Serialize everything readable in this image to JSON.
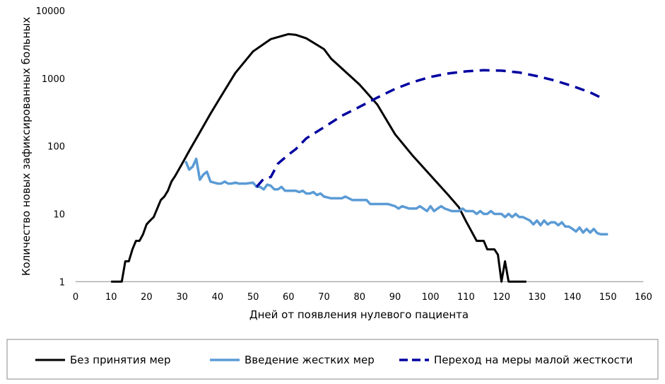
{
  "chart_data": {
    "type": "line",
    "title": "",
    "xlabel": "Дней от появления нулевого пациента",
    "ylabel": "Количество новых зафиксированных больных",
    "xlim": [
      0,
      160
    ],
    "ylim": [
      1,
      10000
    ],
    "yscale": "log",
    "xticks": [
      0,
      10,
      20,
      30,
      40,
      50,
      60,
      70,
      80,
      90,
      100,
      110,
      120,
      130,
      140,
      150,
      160
    ],
    "yticks": [
      1,
      10,
      100,
      1000,
      10000
    ],
    "ytick_labels": [
      "1",
      "10",
      "100",
      "1000",
      "10000"
    ],
    "grid": false,
    "legend_position": "bottom",
    "series": [
      {
        "name": "Без принятия мер",
        "color": "#000000",
        "style": "solid",
        "x": [
          10,
          13,
          14,
          15,
          16,
          17,
          18,
          19,
          20,
          21,
          22,
          23,
          24,
          25,
          26,
          27,
          28,
          30,
          32,
          35,
          38,
          40,
          45,
          50,
          55,
          60,
          62,
          65,
          70,
          72,
          80,
          85,
          90,
          95,
          100,
          105,
          108,
          110,
          113,
          115,
          116,
          118,
          119,
          120,
          121,
          122,
          127
        ],
        "y": [
          1,
          1,
          2,
          2,
          3,
          4,
          4,
          5,
          7,
          8,
          9,
          12,
          16,
          18,
          22,
          30,
          36,
          55,
          85,
          160,
          300,
          450,
          1200,
          2500,
          3800,
          4500,
          4400,
          3900,
          2700,
          1950,
          810,
          410,
          150,
          72,
          37,
          19,
          12.5,
          7.8,
          4,
          4,
          3,
          3,
          2.5,
          1,
          2,
          1,
          1
        ]
      },
      {
        "name": "Введение жестких мер",
        "color": "#5b9bd5",
        "style": "solid",
        "x": [
          31,
          32,
          33,
          34,
          35,
          36,
          37,
          38,
          39,
          40,
          41,
          42,
          43,
          44,
          45,
          46,
          48,
          50,
          51,
          52,
          53,
          54,
          55,
          56,
          57,
          58,
          59,
          60,
          62,
          63,
          64,
          65,
          66,
          67,
          68,
          69,
          70,
          72,
          75,
          76,
          77,
          78,
          80,
          82,
          83,
          85,
          88,
          90,
          91,
          92,
          94,
          96,
          97,
          98,
          99,
          100,
          101,
          102,
          103,
          104,
          106,
          108,
          109,
          110,
          112,
          113,
          114,
          115,
          116,
          117,
          118,
          120,
          121,
          122,
          123,
          124,
          125,
          126,
          128,
          129,
          130,
          131,
          132,
          133,
          134,
          135,
          136,
          137,
          138,
          139,
          140,
          141,
          142,
          143,
          144,
          145,
          146,
          147,
          148,
          150
        ],
        "y": [
          60,
          45,
          50,
          65,
          32,
          38,
          42,
          30,
          29,
          28,
          28,
          30,
          28,
          28,
          29,
          28,
          28,
          29,
          25,
          25,
          23,
          27,
          26,
          23,
          23,
          25,
          22,
          22,
          22,
          21,
          22,
          20,
          20,
          21,
          19,
          20,
          18,
          17,
          17,
          18,
          17,
          16,
          16,
          16,
          14,
          14,
          14,
          13,
          12,
          13,
          12,
          12,
          13,
          12,
          11,
          13,
          11,
          12,
          13,
          12,
          11,
          11,
          12,
          11,
          11,
          10,
          11,
          10,
          10,
          11,
          10,
          10,
          9,
          10,
          9,
          10,
          9,
          9,
          8,
          7,
          8,
          6.8,
          8,
          7,
          7.5,
          7.5,
          6.8,
          7.5,
          6.5,
          6.5,
          6,
          5.5,
          6.3,
          5.3,
          6,
          5.3,
          6,
          5.2,
          5,
          5
        ]
      },
      {
        "name": "Переход на меры малой жесткости",
        "color": "#0000a0",
        "style": "dashed",
        "x": [
          51,
          53,
          55,
          57,
          60,
          62,
          65,
          70,
          75,
          80,
          85,
          90,
          95,
          100,
          105,
          110,
          115,
          120,
          125,
          130,
          135,
          140,
          145,
          149
        ],
        "y": [
          25,
          33,
          35,
          55,
          75,
          90,
          130,
          190,
          280,
          380,
          520,
          700,
          880,
          1050,
          1180,
          1270,
          1320,
          1300,
          1220,
          1080,
          930,
          770,
          620,
          490
        ]
      }
    ]
  }
}
